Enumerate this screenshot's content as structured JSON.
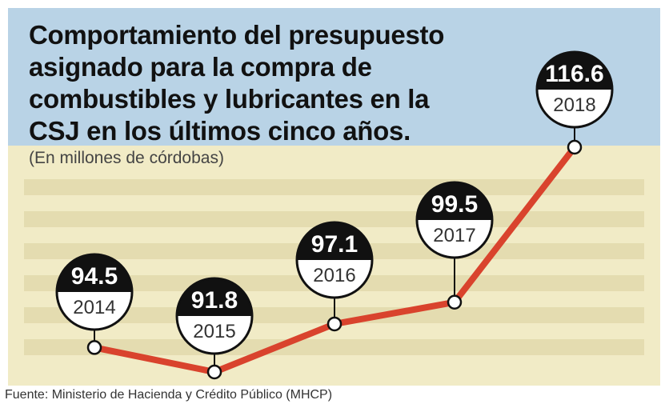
{
  "title": "Comportamiento del presupuesto asignado para la compra de combustibles y lubricantes en la CSJ en los últimos cinco años.",
  "subtitle": "(En millones de córdobas)",
  "source": "Fuente: Ministerio de Hacienda y Crédito Público (MHCP)",
  "colors": {
    "header_bg": "#b9d3e6",
    "plot_bg": "#f1ebc6",
    "stripe": "#e4dcb0",
    "line": "#d9432d",
    "bubble_top": "#111111",
    "bubble_bottom": "#ffffff"
  },
  "chart_data": {
    "type": "line",
    "title": "Comportamiento del presupuesto asignado para la compra de combustibles y lubricantes en la CSJ en los últimos cinco años.",
    "ylabel": "",
    "xlabel": "",
    "grid": false,
    "categories": [
      "2014",
      "2015",
      "2016",
      "2017",
      "2018"
    ],
    "values": [
      94.5,
      91.8,
      97.1,
      99.5,
      116.6
    ],
    "value_labels": [
      "94.5",
      "91.8",
      "97.1",
      "99.5",
      "116.6"
    ]
  }
}
